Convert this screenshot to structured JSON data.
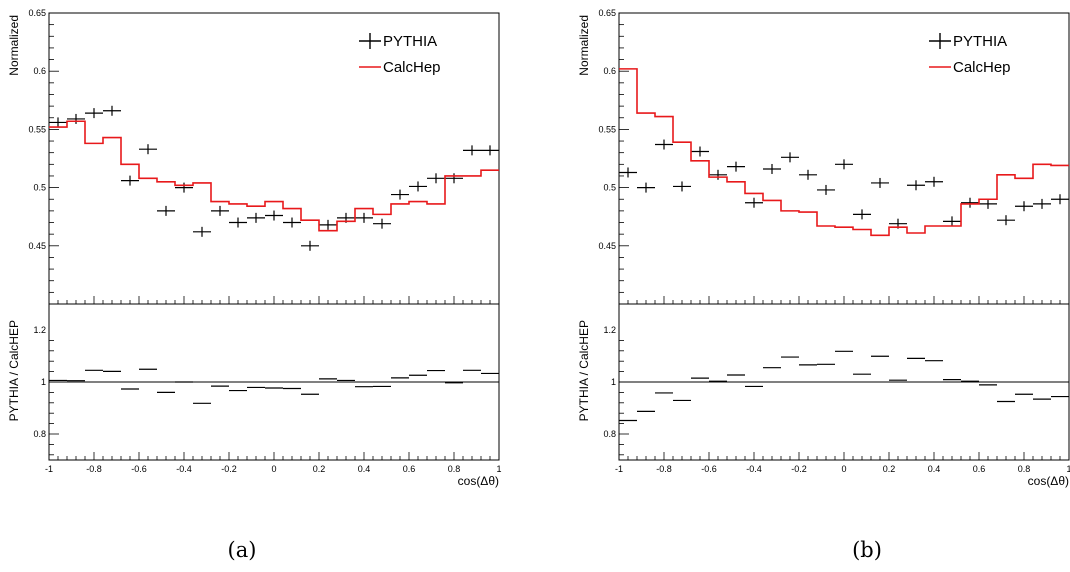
{
  "chart_data": [
    {
      "type": "line",
      "caption": "(a)",
      "xlabel": "cos(Δθ)",
      "xlim": [
        -1,
        1
      ],
      "x_ticks": [
        "-1",
        "-0.8",
        "-0.6",
        "-0.4",
        "-0.2",
        "0",
        "0.2",
        "0.4",
        "0.6",
        "0.8",
        "1"
      ],
      "top": {
        "ylabel": "Normalized",
        "ylim": [
          0.4,
          0.65
        ],
        "y_ticks": [
          "0.45",
          "0.5",
          "0.55",
          "0.6",
          "0.65"
        ],
        "legend_position": "top-right",
        "series": [
          {
            "name": "PYTHIA",
            "style": "points",
            "color": "#000000",
            "x": [
              -0.96,
              -0.88,
              -0.8,
              -0.72,
              -0.64,
              -0.56,
              -0.48,
              -0.4,
              -0.32,
              -0.24,
              -0.16,
              -0.08,
              0.0,
              0.08,
              0.16,
              0.24,
              0.32,
              0.4,
              0.48,
              0.56,
              0.64,
              0.72,
              0.8,
              0.88,
              0.96
            ],
            "y": [
              0.556,
              0.559,
              0.564,
              0.566,
              0.506,
              0.533,
              0.48,
              0.5,
              0.462,
              0.48,
              0.47,
              0.474,
              0.476,
              0.47,
              0.45,
              0.468,
              0.474,
              0.474,
              0.469,
              0.494,
              0.501,
              0.508,
              0.508,
              0.532,
              0.532
            ]
          },
          {
            "name": "CalcHep",
            "style": "step",
            "color": "#e8191b",
            "x": [
              -0.96,
              -0.88,
              -0.8,
              -0.72,
              -0.64,
              -0.56,
              -0.48,
              -0.4,
              -0.32,
              -0.24,
              -0.16,
              -0.08,
              0.0,
              0.08,
              0.16,
              0.24,
              0.32,
              0.4,
              0.48,
              0.56,
              0.64,
              0.72,
              0.8,
              0.88,
              0.96
            ],
            "y": [
              0.552,
              0.557,
              0.538,
              0.543,
              0.52,
              0.508,
              0.505,
              0.502,
              0.504,
              0.488,
              0.486,
              0.484,
              0.488,
              0.482,
              0.472,
              0.463,
              0.471,
              0.482,
              0.477,
              0.486,
              0.488,
              0.486,
              0.51,
              0.51,
              0.515
            ]
          }
        ]
      },
      "bottom": {
        "ylabel": "PYTHIA / CalcHEP",
        "ylim": [
          0.7,
          1.3
        ],
        "y_ticks": [
          "0.8",
          "1",
          "1.2"
        ],
        "reference_line": 1,
        "ratio": [
          1.006,
          1.005,
          1.045,
          1.041,
          0.973,
          1.049,
          0.96,
          1.0,
          0.918,
          0.984,
          0.967,
          0.979,
          0.977,
          0.975,
          0.953,
          1.012,
          1.006,
          0.982,
          0.983,
          1.016,
          1.026,
          1.044,
          0.997,
          1.045,
          1.033
        ]
      }
    },
    {
      "type": "line",
      "caption": "(b)",
      "xlabel": "cos(Δθ)",
      "xlim": [
        -1,
        1
      ],
      "x_ticks": [
        "-1",
        "-0.8",
        "-0.6",
        "-0.4",
        "-0.2",
        "0",
        "0.2",
        "0.4",
        "0.6",
        "0.8",
        "1"
      ],
      "top": {
        "ylabel": "Normalized",
        "ylim": [
          0.4,
          0.65
        ],
        "y_ticks": [
          "0.45",
          "0.5",
          "0.55",
          "0.6",
          "0.65"
        ],
        "legend_position": "top-right",
        "series": [
          {
            "name": "PYTHIA",
            "style": "points",
            "color": "#000000",
            "x": [
              -0.96,
              -0.88,
              -0.8,
              -0.72,
              -0.64,
              -0.56,
              -0.48,
              -0.4,
              -0.32,
              -0.24,
              -0.16,
              -0.08,
              0.0,
              0.08,
              0.16,
              0.24,
              0.32,
              0.4,
              0.48,
              0.56,
              0.64,
              0.72,
              0.8,
              0.88,
              0.96
            ],
            "y": [
              0.513,
              0.5,
              0.537,
              0.501,
              0.531,
              0.511,
              0.518,
              0.487,
              0.516,
              0.526,
              0.511,
              0.498,
              0.52,
              0.477,
              0.504,
              0.469,
              0.502,
              0.505,
              0.471,
              0.487,
              0.486,
              0.472,
              0.484,
              0.486,
              0.49
            ]
          },
          {
            "name": "CalcHep",
            "style": "step",
            "color": "#e8191b",
            "x": [
              -0.96,
              -0.88,
              -0.8,
              -0.72,
              -0.64,
              -0.56,
              -0.48,
              -0.4,
              -0.32,
              -0.24,
              -0.16,
              -0.08,
              0.0,
              0.08,
              0.16,
              0.24,
              0.32,
              0.4,
              0.48,
              0.56,
              0.64,
              0.72,
              0.8,
              0.88,
              0.96
            ],
            "y": [
              0.602,
              0.564,
              0.561,
              0.539,
              0.523,
              0.509,
              0.505,
              0.495,
              0.489,
              0.48,
              0.479,
              0.467,
              0.466,
              0.464,
              0.459,
              0.466,
              0.461,
              0.467,
              0.467,
              0.486,
              0.49,
              0.511,
              0.508,
              0.52,
              0.519
            ]
          }
        ]
      },
      "bottom": {
        "ylabel": "PYTHIA / CalcHEP",
        "ylim": [
          0.7,
          1.3
        ],
        "y_ticks": [
          "0.8",
          "1",
          "1.2"
        ],
        "reference_line": 1,
        "ratio": [
          0.852,
          0.887,
          0.958,
          0.929,
          1.015,
          1.003,
          1.027,
          0.983,
          1.055,
          1.096,
          1.066,
          1.068,
          1.118,
          1.03,
          1.099,
          1.007,
          1.091,
          1.082,
          1.009,
          1.003,
          0.989,
          0.925,
          0.953,
          0.934,
          0.944
        ]
      }
    }
  ]
}
